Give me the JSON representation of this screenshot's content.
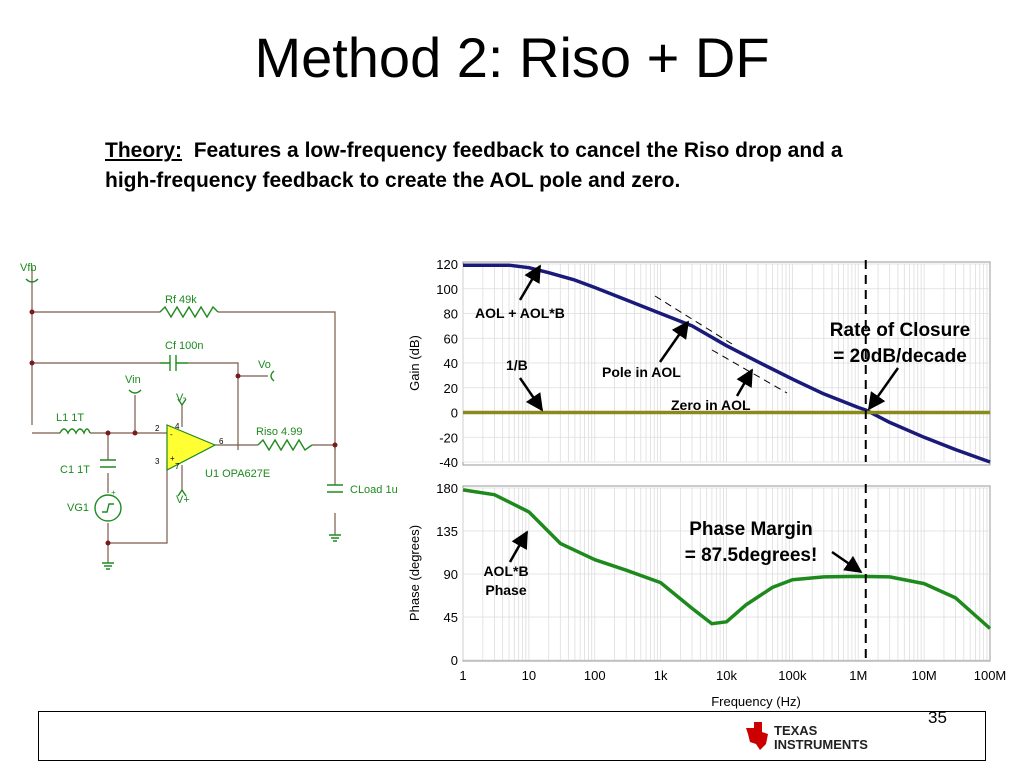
{
  "slide": {
    "title": "Method 2:  Riso + DF",
    "page_number": "35"
  },
  "theory": {
    "label": "Theory:",
    "text": "Features a low-frequency feedback to cancel the Riso drop and a high-frequency feedback to create the AOL pole and zero."
  },
  "schematic": {
    "vfb": "Vfb",
    "rf": "Rf 49k",
    "cf": "Cf 100n",
    "vo": "Vo",
    "vin": "Vin",
    "vminus": "V-",
    "vplus": "V+",
    "l1": "L1 1T",
    "c1": "C1 1T",
    "vg1": "VG1",
    "riso": "Riso 4.99",
    "u1": "U1 OPA627E",
    "cload": "CLoad 1u",
    "pin2": "2",
    "pin3": "3",
    "pin4": "4",
    "pin6": "6",
    "pin7": "7",
    "minus_sign": "-",
    "plus_sign": "+",
    "src_plus": "+"
  },
  "annotations": {
    "aol_aolb": "AOL + AOL*B",
    "one_over_b": "1/B",
    "pole": "Pole in AOL",
    "zero": "Zero in AOL",
    "roc_line1": "Rate of Closure",
    "roc_line2": "= 20dB/decade",
    "pm_line1": "Phase Margin",
    "pm_line2": "= 87.5degrees!",
    "aolb_phase_line1": "AOL*B",
    "aolb_phase_line2": "Phase"
  },
  "logo": {
    "line1": "Texas",
    "line2": "Instruments"
  },
  "chart_data": [
    {
      "type": "line",
      "ylabel": "Gain (dB)",
      "xlabel": "",
      "x_scale": "log",
      "xlim": [
        1,
        100000000
      ],
      "ylim": [
        -40,
        120
      ],
      "yticks": [
        "120",
        "100",
        "80",
        "60",
        "40",
        "20",
        "0",
        "-20",
        "-40"
      ],
      "grid": true,
      "series": [
        {
          "color": "#1a1a7a",
          "x": [
            1,
            5,
            10,
            20,
            50,
            100,
            300,
            1000,
            3000,
            10000,
            30000,
            100000,
            300000,
            1000000,
            1300000,
            3000000,
            10000000,
            30000000,
            100000000
          ],
          "y": [
            119,
            119,
            117,
            113,
            107,
            101,
            91,
            80,
            70,
            54,
            41,
            27,
            15,
            4,
            2,
            -8,
            -20,
            -30,
            -40
          ]
        },
        {
          "color": "#8a8a1a",
          "x": [
            1,
            100000000
          ],
          "y": [
            0,
            0
          ]
        }
      ],
      "marker_line_x": 1300000
    },
    {
      "type": "line",
      "ylabel": "Phase (degrees)",
      "xlabel": "Frequency (Hz)",
      "x_scale": "log",
      "xlim": [
        1,
        100000000
      ],
      "ylim": [
        0,
        180
      ],
      "yticks": [
        "180",
        "135",
        "90",
        "45",
        "0"
      ],
      "xticks": [
        "1",
        "10",
        "100",
        "1k",
        "10k",
        "100k",
        "1M",
        "10M",
        "100M"
      ],
      "grid": true,
      "series": [
        {
          "color": "#1e8a1e",
          "x": [
            1,
            3,
            10,
            30,
            100,
            300,
            1000,
            3000,
            6000,
            10000,
            20000,
            50000,
            100000,
            300000,
            1000000,
            3000000,
            10000000,
            30000000,
            100000000
          ],
          "y": [
            178,
            173,
            155,
            122,
            105,
            94,
            81,
            54,
            38,
            40,
            58,
            76,
            84,
            87,
            87.5,
            87,
            80,
            65,
            33
          ]
        }
      ],
      "marker_line_x": 1300000
    }
  ]
}
